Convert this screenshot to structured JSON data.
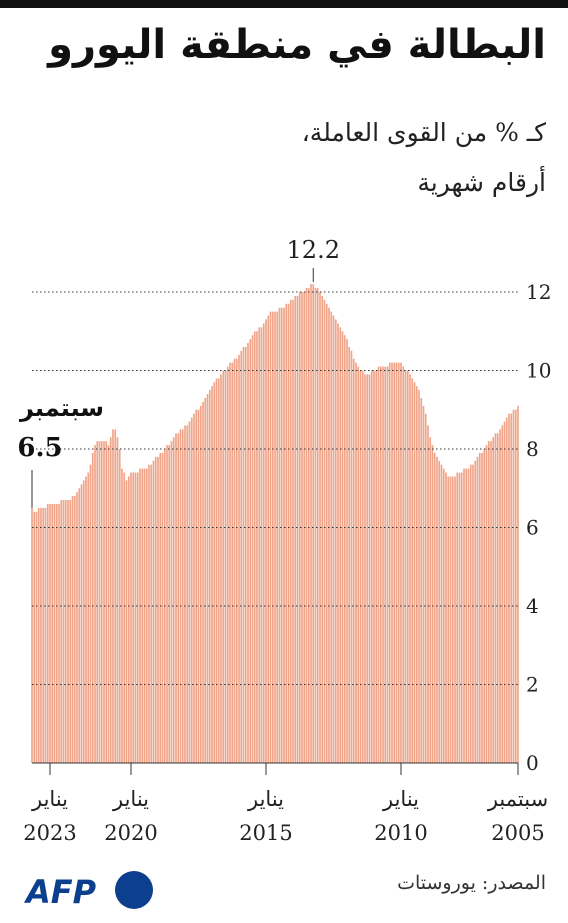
{
  "chart_data": {
    "type": "bar",
    "title": "البطالة في منطقة اليورو",
    "subtitle": [
      "كـ % من القوى العاملة،",
      "أرقام شهرية"
    ],
    "source": "المصدر: يوروستات",
    "logo": "AFP",
    "last_label": "سبتمبر",
    "peak_index": 91,
    "color": "#f0a58a",
    "x_reversed": true,
    "grid": true,
    "ylim": [
      0,
      12.4
    ],
    "yticks": [
      0,
      2,
      4,
      6,
      8,
      10,
      12
    ],
    "categories": [
      "سبتمبر 2005",
      null,
      null,
      null,
      null,
      null,
      null,
      null,
      null,
      null,
      null,
      null,
      null,
      null,
      null,
      null,
      null,
      null,
      null,
      null,
      null,
      null,
      null,
      null,
      null,
      null,
      null,
      null,
      null,
      null,
      null,
      null,
      null,
      null,
      null,
      null,
      null,
      null,
      null,
      null,
      null,
      null,
      null,
      null,
      null,
      null,
      null,
      null,
      null,
      null,
      null,
      null,
      "يناير 2010",
      null,
      null,
      null,
      null,
      null,
      null,
      null,
      null,
      null,
      null,
      null,
      null,
      null,
      null,
      null,
      null,
      null,
      null,
      null,
      null,
      null,
      null,
      null,
      null,
      null,
      null,
      null,
      null,
      null,
      null,
      null,
      null,
      null,
      null,
      null,
      null,
      null,
      null,
      null,
      null,
      null,
      null,
      null,
      null,
      null,
      null,
      null,
      null,
      null,
      null,
      null,
      null,
      null,
      null,
      null,
      null,
      null,
      null,
      null,
      "يناير 2015",
      null,
      null,
      null,
      null,
      null,
      null,
      null,
      null,
      null,
      null,
      null,
      null,
      null,
      null,
      null,
      null,
      null,
      null,
      null,
      null,
      null,
      null,
      null,
      null,
      null,
      null,
      null,
      null,
      null,
      null,
      null,
      null,
      null,
      null,
      null,
      null,
      null,
      null,
      null,
      null,
      null,
      null,
      null,
      null,
      null,
      null,
      null,
      null,
      null,
      null,
      null,
      null,
      null,
      null,
      null,
      null,
      null,
      null,
      null,
      "يناير 2020",
      null,
      null,
      null,
      null,
      null,
      null,
      null,
      null,
      null,
      null,
      null,
      null,
      null,
      null,
      null,
      null,
      null,
      null,
      null,
      null,
      null,
      null,
      null,
      null,
      null,
      null,
      null,
      null,
      null,
      null,
      null,
      null,
      null,
      null,
      null,
      "يناير 2023",
      null,
      null,
      null,
      null,
      null,
      null,
      null,
      null
    ],
    "values": [
      9.1,
      9.0,
      9.0,
      8.9,
      8.9,
      8.8,
      8.7,
      8.6,
      8.5,
      8.4,
      8.4,
      8.3,
      8.2,
      8.2,
      8.1,
      8.0,
      7.9,
      7.9,
      7.8,
      7.7,
      7.6,
      7.6,
      7.5,
      7.5,
      7.5,
      7.4,
      7.4,
      7.4,
      7.3,
      7.3,
      7.3,
      7.3,
      7.4,
      7.5,
      7.6,
      7.7,
      7.8,
      7.9,
      8.1,
      8.3,
      8.6,
      8.9,
      9.1,
      9.3,
      9.5,
      9.6,
      9.7,
      9.8,
      9.9,
      10.0,
      10.0,
      10.1,
      10.2,
      10.2,
      10.2,
      10.2,
      10.2,
      10.2,
      10.1,
      10.1,
      10.1,
      10.1,
      10.1,
      10.0,
      10.0,
      10.0,
      9.9,
      9.9,
      9.9,
      10.0,
      10.0,
      10.1,
      10.2,
      10.3,
      10.5,
      10.6,
      10.8,
      10.9,
      11.0,
      11.1,
      11.2,
      11.3,
      11.4,
      11.5,
      11.6,
      11.7,
      11.8,
      11.9,
      12.0,
      12.1,
      12.1,
      12.2,
      12.2,
      12.1,
      12.1,
      12.0,
      12.0,
      12.0,
      11.9,
      11.9,
      11.8,
      11.8,
      11.7,
      11.7,
      11.6,
      11.6,
      11.6,
      11.5,
      11.5,
      11.5,
      11.5,
      11.4,
      11.3,
      11.2,
      11.1,
      11.1,
      11.0,
      11.0,
      10.9,
      10.8,
      10.7,
      10.6,
      10.6,
      10.5,
      10.4,
      10.3,
      10.3,
      10.2,
      10.2,
      10.1,
      10.0,
      10.0,
      9.9,
      9.8,
      9.8,
      9.7,
      9.6,
      9.5,
      9.4,
      9.3,
      9.2,
      9.1,
      9.0,
      9.0,
      8.9,
      8.8,
      8.7,
      8.6,
      8.6,
      8.5,
      8.5,
      8.4,
      8.4,
      8.3,
      8.2,
      8.1,
      8.1,
      8.0,
      7.9,
      7.9,
      7.8,
      7.8,
      7.7,
      7.6,
      7.6,
      7.5,
      7.5,
      7.5,
      7.5,
      7.4,
      7.4,
      7.4,
      7.4,
      7.3,
      7.2,
      7.4,
      7.5,
      8.0,
      8.3,
      8.5,
      8.5,
      8.3,
      8.1,
      8.2,
      8.2,
      8.2,
      8.2,
      8.2,
      8.1,
      7.9,
      7.6,
      7.4,
      7.3,
      7.2,
      7.1,
      7.0,
      6.9,
      6.8,
      6.8,
      6.7,
      6.7,
      6.7,
      6.7,
      6.7,
      6.6,
      6.6,
      6.6,
      6.6,
      6.6,
      6.6,
      6.5,
      6.5,
      6.5,
      6.5,
      6.4,
      6.4,
      6.5
    ]
  }
}
